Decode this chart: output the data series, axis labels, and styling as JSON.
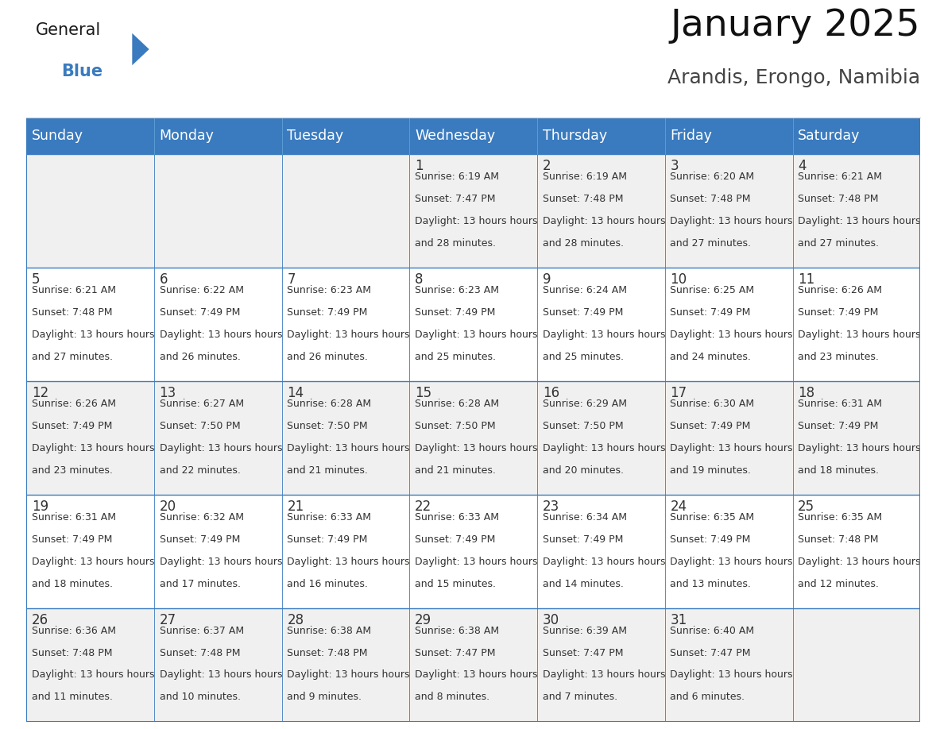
{
  "title": "January 2025",
  "subtitle": "Arandis, Erongo, Namibia",
  "header_color": "#3a7bbf",
  "header_text_color": "#ffffff",
  "row_bg_even": "#f0f0f0",
  "row_bg_odd": "#ffffff",
  "border_color": "#3a7bbf",
  "text_color": "#333333",
  "days_of_week": [
    "Sunday",
    "Monday",
    "Tuesday",
    "Wednesday",
    "Thursday",
    "Friday",
    "Saturday"
  ],
  "weeks": [
    [
      {
        "day": "",
        "sunrise": "",
        "sunset": "",
        "daylight": ""
      },
      {
        "day": "",
        "sunrise": "",
        "sunset": "",
        "daylight": ""
      },
      {
        "day": "",
        "sunrise": "",
        "sunset": "",
        "daylight": ""
      },
      {
        "day": "1",
        "sunrise": "6:19 AM",
        "sunset": "7:47 PM",
        "daylight": "13 hours and 28 minutes."
      },
      {
        "day": "2",
        "sunrise": "6:19 AM",
        "sunset": "7:48 PM",
        "daylight": "13 hours and 28 minutes."
      },
      {
        "day": "3",
        "sunrise": "6:20 AM",
        "sunset": "7:48 PM",
        "daylight": "13 hours and 27 minutes."
      },
      {
        "day": "4",
        "sunrise": "6:21 AM",
        "sunset": "7:48 PM",
        "daylight": "13 hours and 27 minutes."
      }
    ],
    [
      {
        "day": "5",
        "sunrise": "6:21 AM",
        "sunset": "7:48 PM",
        "daylight": "13 hours and 27 minutes."
      },
      {
        "day": "6",
        "sunrise": "6:22 AM",
        "sunset": "7:49 PM",
        "daylight": "13 hours and 26 minutes."
      },
      {
        "day": "7",
        "sunrise": "6:23 AM",
        "sunset": "7:49 PM",
        "daylight": "13 hours and 26 minutes."
      },
      {
        "day": "8",
        "sunrise": "6:23 AM",
        "sunset": "7:49 PM",
        "daylight": "13 hours and 25 minutes."
      },
      {
        "day": "9",
        "sunrise": "6:24 AM",
        "sunset": "7:49 PM",
        "daylight": "13 hours and 25 minutes."
      },
      {
        "day": "10",
        "sunrise": "6:25 AM",
        "sunset": "7:49 PM",
        "daylight": "13 hours and 24 minutes."
      },
      {
        "day": "11",
        "sunrise": "6:26 AM",
        "sunset": "7:49 PM",
        "daylight": "13 hours and 23 minutes."
      }
    ],
    [
      {
        "day": "12",
        "sunrise": "6:26 AM",
        "sunset": "7:49 PM",
        "daylight": "13 hours and 23 minutes."
      },
      {
        "day": "13",
        "sunrise": "6:27 AM",
        "sunset": "7:50 PM",
        "daylight": "13 hours and 22 minutes."
      },
      {
        "day": "14",
        "sunrise": "6:28 AM",
        "sunset": "7:50 PM",
        "daylight": "13 hours and 21 minutes."
      },
      {
        "day": "15",
        "sunrise": "6:28 AM",
        "sunset": "7:50 PM",
        "daylight": "13 hours and 21 minutes."
      },
      {
        "day": "16",
        "sunrise": "6:29 AM",
        "sunset": "7:50 PM",
        "daylight": "13 hours and 20 minutes."
      },
      {
        "day": "17",
        "sunrise": "6:30 AM",
        "sunset": "7:49 PM",
        "daylight": "13 hours and 19 minutes."
      },
      {
        "day": "18",
        "sunrise": "6:31 AM",
        "sunset": "7:49 PM",
        "daylight": "13 hours and 18 minutes."
      }
    ],
    [
      {
        "day": "19",
        "sunrise": "6:31 AM",
        "sunset": "7:49 PM",
        "daylight": "13 hours and 18 minutes."
      },
      {
        "day": "20",
        "sunrise": "6:32 AM",
        "sunset": "7:49 PM",
        "daylight": "13 hours and 17 minutes."
      },
      {
        "day": "21",
        "sunrise": "6:33 AM",
        "sunset": "7:49 PM",
        "daylight": "13 hours and 16 minutes."
      },
      {
        "day": "22",
        "sunrise": "6:33 AM",
        "sunset": "7:49 PM",
        "daylight": "13 hours and 15 minutes."
      },
      {
        "day": "23",
        "sunrise": "6:34 AM",
        "sunset": "7:49 PM",
        "daylight": "13 hours and 14 minutes."
      },
      {
        "day": "24",
        "sunrise": "6:35 AM",
        "sunset": "7:49 PM",
        "daylight": "13 hours and 13 minutes."
      },
      {
        "day": "25",
        "sunrise": "6:35 AM",
        "sunset": "7:48 PM",
        "daylight": "13 hours and 12 minutes."
      }
    ],
    [
      {
        "day": "26",
        "sunrise": "6:36 AM",
        "sunset": "7:48 PM",
        "daylight": "13 hours and 11 minutes."
      },
      {
        "day": "27",
        "sunrise": "6:37 AM",
        "sunset": "7:48 PM",
        "daylight": "13 hours and 10 minutes."
      },
      {
        "day": "28",
        "sunrise": "6:38 AM",
        "sunset": "7:48 PM",
        "daylight": "13 hours and 9 minutes."
      },
      {
        "day": "29",
        "sunrise": "6:38 AM",
        "sunset": "7:47 PM",
        "daylight": "13 hours and 8 minutes."
      },
      {
        "day": "30",
        "sunrise": "6:39 AM",
        "sunset": "7:47 PM",
        "daylight": "13 hours and 7 minutes."
      },
      {
        "day": "31",
        "sunrise": "6:40 AM",
        "sunset": "7:47 PM",
        "daylight": "13 hours and 6 minutes."
      },
      {
        "day": "",
        "sunrise": "",
        "sunset": "",
        "daylight": ""
      }
    ]
  ],
  "logo_general_color": "#1a1a1a",
  "logo_blue_color": "#3a7bbf",
  "title_fontsize": 34,
  "subtitle_fontsize": 18,
  "header_fontsize": 12.5,
  "day_number_fontsize": 12,
  "cell_text_fontsize": 9
}
